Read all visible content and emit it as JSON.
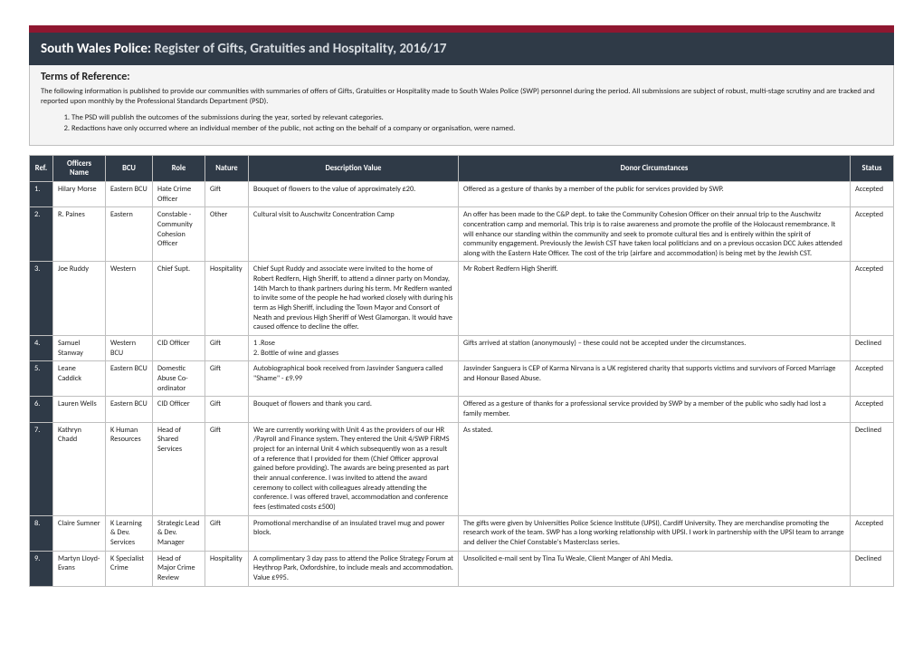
{
  "header": {
    "org": "South Wales Police:",
    "title": "Register of Gifts, Gratuities and Hospitality, 2016/17"
  },
  "terms": {
    "title": "Terms of Reference:",
    "intro": "The following information is published to provide our communities with summaries of offers of Gifts, Gratuities or Hospitality made to South Wales Police (SWP) personnel during the period. All submissions are subject of robust, multi-stage scrutiny and are tracked and reported upon monthly by the Professional Standards Department (PSD).",
    "items": [
      "The PSD will publish the outcomes of the submissions during the year, sorted by relevant categories.",
      "Redactions have only occurred where an individual member of the public, not acting on the behalf of a company or organisation, were named."
    ]
  },
  "columns": {
    "ref": "Ref.",
    "name": "Officers Name",
    "bcu": "BCU",
    "role": "Role",
    "nature": "Nature",
    "desc": "Description Value",
    "donor": "Donor Circumstances",
    "status": "Status"
  },
  "rows": [
    {
      "ref": "1.",
      "name": "Hilary Morse",
      "bcu": "Eastern BCU",
      "role": "Hate Crime Officer",
      "nature": "Gift",
      "desc": "Bouquet of flowers to the value of approximately £20.",
      "donor": "Offered as a gesture of thanks by a member of the public for services provided by SWP.",
      "status": "Accepted"
    },
    {
      "ref": "2.",
      "name": "R. Paines",
      "bcu": "Eastern",
      "role": "Constable - Community Cohesion Officer",
      "nature": "Other",
      "desc": "Cultural visit to Auschwitz Concentration Camp",
      "donor": "An offer has been made to the C&P dept. to take the Community Cohesion Officer on their annual trip to the Auschwitz concentration camp and memorial. This trip is to raise awareness and promote the profile of the Holocaust remembrance. It will enhance our standing within the community and seek to promote cultural ties and is entirely within the spirit of community engagement. Previously the Jewish CST have taken local politicians and on a previous occasion DCC Jukes attended along with the Eastern Hate Officer. The cost of the trip (airfare and accommodation) is being met by the Jewish CST.",
      "status": "Accepted"
    },
    {
      "ref": "3.",
      "name": "Joe Ruddy",
      "bcu": "Western",
      "role": "Chief Supt.",
      "nature": "Hospitality",
      "desc": "Chief Supt Ruddy and associate were invited to the home of Robert Redfern, High Sheriff, to attend a dinner party on Monday, 14th March to thank partners during his term.  Mr Redfern wanted to invite some of the people he had worked closely with during his term as High Sheriff, including the Town Mayor and Consort of Neath and previous High Sheriff of West Glamorgan.  It would have caused offence to decline the offer.",
      "donor": "Mr Robert Redfern High Sheriff.",
      "status": "Accepted"
    },
    {
      "ref": "4.",
      "name": "Samuel Stanway",
      "bcu": "Western BCU",
      "role": "CID Officer",
      "nature": "Gift",
      "desc": "1 .Rose\n2. Bottle of wine and glasses",
      "donor": "Gifts arrived at station (anonymously) – these could not be accepted under the circumstances.",
      "status": "Declined"
    },
    {
      "ref": "5.",
      "name": "Leane Caddick",
      "bcu": "Eastern BCU",
      "role": "Domestic Abuse Co-ordinator",
      "nature": "Gift",
      "desc": "Autobiographical book received from Jasvinder Sanguera called \"Shame\" - £9.99",
      "donor": "Jasvinder Sanguera is CEP of Karma Nirvana is a UK registered charity that supports victims and survivors of Forced Marriage and Honour Based Abuse.",
      "status": "Accepted"
    },
    {
      "ref": "6.",
      "name": "Lauren Wells",
      "bcu": "Eastern BCU",
      "role": "CID Officer",
      "nature": "Gift",
      "desc": "Bouquet of flowers and thank you card.",
      "donor": "Offered as a gesture of thanks for a professional service provided by SWP by a member of the public who sadly had lost a family member.",
      "status": "Accepted"
    },
    {
      "ref": "7.",
      "name": "Kathryn Chadd",
      "bcu": "K Human Resources",
      "role": "Head of Shared Services",
      "nature": "Gift",
      "desc": "We are currently working with Unit 4 as the providers of our HR /Payroll and Finance system. They entered the Unit 4/SWP FIRMS project for an internal Unit 4 which subsequently won as a result of a reference that I provided for them (Chief Officer approval gained before providing). The awards are being presented as part their annual conference. I was invited to attend the award ceremony to collect with colleagues already attending the conference.  I was offered travel, accommodation and conference fees (estimated costs £500)",
      "donor": "As stated.",
      "status": "Declined"
    },
    {
      "ref": "8.",
      "name": "Claire Sumner",
      "bcu": "K Learning & Dev. Services",
      "role": "Strategic Lead & Dev. Manager",
      "nature": "Gift",
      "desc": "Promotional merchandise of an insulated travel mug and power block.",
      "donor": "The gifts were given by Universities Police Science Institute (UPSI), Cardiff University. They are merchandise promoting the research work of the team. SWP has a long working relationship with UPSI.  I work in partnership with the UPSI team to arrange and deliver the Chief Constable's Masterclass series.",
      "status": "Accepted"
    },
    {
      "ref": "9.",
      "name": "Martyn Lloyd-Evans",
      "bcu": "K Specialist Crime",
      "role": "Head of Major Crime Review",
      "nature": "Hospitality",
      "desc": "A complimentary 3 day pass to attend the Police Strategy Forum at Heythrop Park, Oxfordshire, to include meals and accommodation. Value £995.",
      "donor": "Unsolicited e-mail sent by Tina Tu Weale, Client Manger of Ahl Media.",
      "status": "Declined"
    }
  ]
}
